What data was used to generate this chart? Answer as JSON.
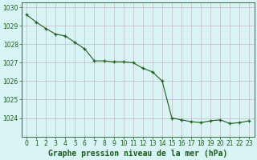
{
  "x": [
    0,
    1,
    2,
    3,
    4,
    5,
    6,
    7,
    8,
    9,
    10,
    11,
    12,
    13,
    14,
    15,
    16,
    17,
    18,
    19,
    20,
    21,
    22,
    23
  ],
  "y": [
    1029.6,
    1029.2,
    1028.85,
    1028.55,
    1028.45,
    1028.1,
    1027.75,
    1027.1,
    1027.1,
    1027.05,
    1027.05,
    1027.0,
    1026.7,
    1026.5,
    1026.0,
    1024.0,
    1023.9,
    1023.8,
    1023.75,
    1023.85,
    1023.9,
    1023.7,
    1023.75,
    1023.85
  ],
  "line_color": "#1a5c1a",
  "marker": "+",
  "marker_color": "#1a5c1a",
  "bg_color": "#d8f4f4",
  "grid_color": "#c8b8c8",
  "xlabel": "Graphe pression niveau de la mer (hPa)",
  "xlabel_color": "#1a5c1a",
  "tick_color": "#1a5c1a",
  "ylim": [
    1023.0,
    1030.25
  ],
  "yticks": [
    1024,
    1025,
    1026,
    1027,
    1028,
    1029,
    1030
  ],
  "xticks": [
    0,
    1,
    2,
    3,
    4,
    5,
    6,
    7,
    8,
    9,
    10,
    11,
    12,
    13,
    14,
    15,
    16,
    17,
    18,
    19,
    20,
    21,
    22,
    23
  ],
  "tick_fontsize": 5.5,
  "xlabel_fontsize": 7.0,
  "linewidth": 0.8,
  "markersize": 3.5
}
